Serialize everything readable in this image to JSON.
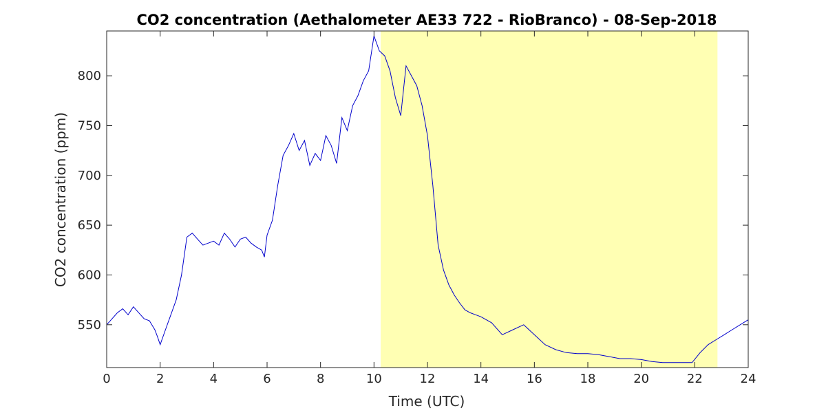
{
  "chart_data": {
    "type": "line",
    "title": "CO2 concentration (Aethalometer AE33 722 - RioBranco) - 08-Sep-2018",
    "xlabel": "Time (UTC)",
    "ylabel": "CO2 concentration (ppm)",
    "xlim": [
      0,
      24
    ],
    "ylim": [
      507,
      845
    ],
    "xticks": [
      0,
      2,
      4,
      6,
      8,
      10,
      12,
      14,
      16,
      18,
      20,
      22,
      24
    ],
    "yticks": [
      550,
      600,
      650,
      700,
      750,
      800
    ],
    "grid": false,
    "highlight": {
      "x_start": 10.25,
      "x_end": 22.85,
      "color": "#ffffb3"
    },
    "series": [
      {
        "color": "#0000cc",
        "x": [
          0,
          0.2,
          0.4,
          0.6,
          0.8,
          1.0,
          1.2,
          1.4,
          1.6,
          1.8,
          1.9,
          2.0,
          2.2,
          2.4,
          2.6,
          2.8,
          3.0,
          3.2,
          3.4,
          3.6,
          3.8,
          4.0,
          4.2,
          4.4,
          4.6,
          4.8,
          5.0,
          5.2,
          5.4,
          5.6,
          5.8,
          5.9,
          6.0,
          6.2,
          6.4,
          6.6,
          6.8,
          7.0,
          7.2,
          7.4,
          7.6,
          7.8,
          8.0,
          8.2,
          8.4,
          8.6,
          8.8,
          9.0,
          9.2,
          9.4,
          9.6,
          9.8,
          10.0,
          10.2,
          10.4,
          10.6,
          10.8,
          11.0,
          11.2,
          11.4,
          11.6,
          11.8,
          12.0,
          12.2,
          12.4,
          12.6,
          12.8,
          13.0,
          13.2,
          13.4,
          13.6,
          13.8,
          14.0,
          14.4,
          14.8,
          15.2,
          15.6,
          16.0,
          16.4,
          16.8,
          17.2,
          17.6,
          18.0,
          18.4,
          18.8,
          19.2,
          19.6,
          20.0,
          20.4,
          20.8,
          21.2,
          21.6,
          21.9,
          22.2,
          22.5,
          22.8,
          23.1,
          23.4,
          23.7,
          24.0
        ],
        "values": [
          550,
          556,
          562,
          566,
          560,
          568,
          562,
          556,
          554,
          545,
          538,
          530,
          545,
          560,
          575,
          600,
          638,
          642,
          636,
          630,
          632,
          634,
          630,
          642,
          636,
          628,
          636,
          638,
          632,
          628,
          625,
          618,
          640,
          655,
          690,
          720,
          730,
          742,
          725,
          735,
          710,
          722,
          715,
          740,
          730,
          712,
          758,
          745,
          770,
          780,
          795,
          805,
          840,
          825,
          820,
          805,
          778,
          760,
          810,
          800,
          790,
          770,
          740,
          690,
          630,
          605,
          590,
          580,
          572,
          565,
          562,
          560,
          558,
          552,
          540,
          545,
          550,
          540,
          530,
          525,
          522,
          521,
          521,
          520,
          518,
          516,
          516,
          515,
          513,
          512,
          512,
          512,
          512,
          522,
          530,
          535,
          540,
          545,
          550,
          555
        ]
      }
    ]
  }
}
